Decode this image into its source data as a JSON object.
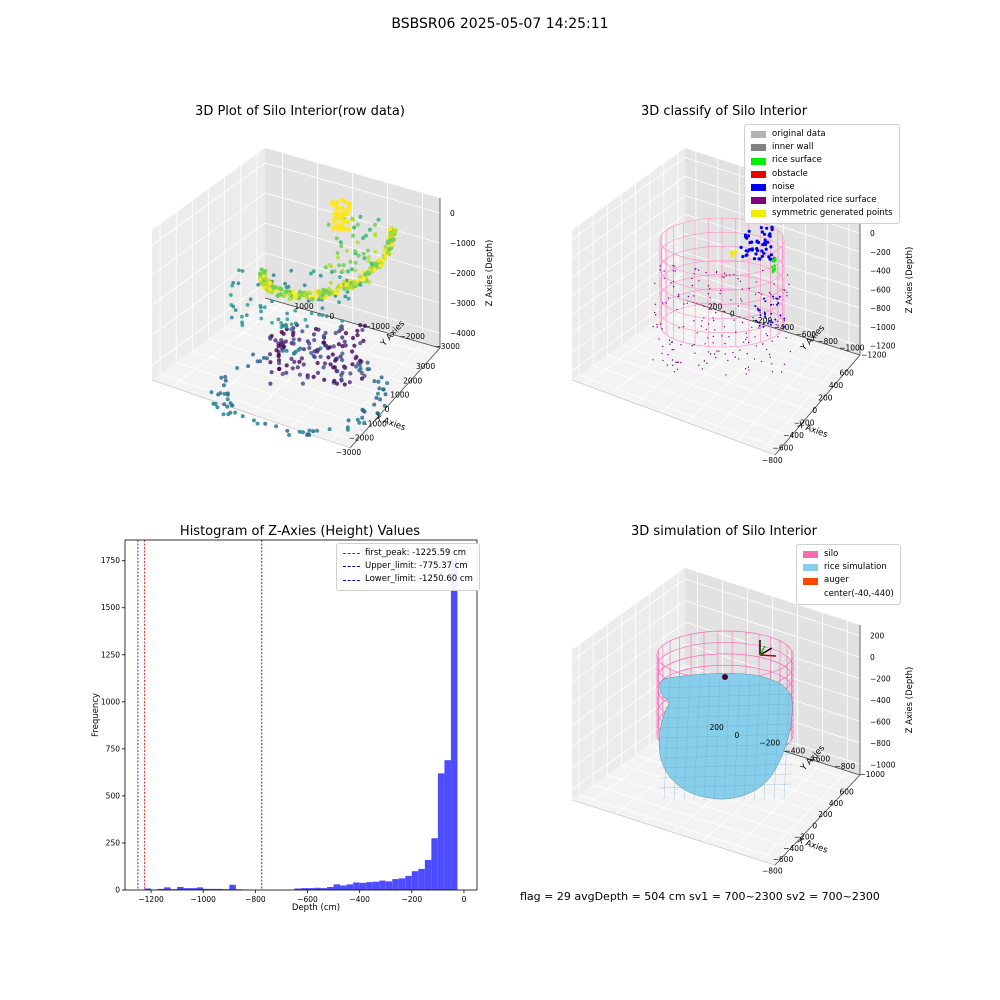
{
  "figure": {
    "suptitle": "BSBSR06 2025-05-07 14:25:11",
    "footer_text": "flag = 29  avgDepth = 504 cm  sv1 = 700~2300  sv2 = 700~2300"
  },
  "chart_data": [
    {
      "type": "scatter3d",
      "title": "3D Plot of Silo Interior(row data)",
      "xlabel": "X Axies",
      "ylabel": "Y Axies",
      "zlabel": "Z Axies (Depth)",
      "x_ticks": [
        "−3000",
        "−2000",
        "−1000",
        "0",
        "1000",
        "2000",
        "3000"
      ],
      "y_ticks": [
        "−3000",
        "−2000",
        "−1000",
        "0",
        "1000"
      ],
      "z_ticks": [
        "−4000",
        "−3000",
        "−2000",
        "−1000",
        "0"
      ],
      "colormap": "viridis",
      "grid": true
    },
    {
      "type": "scatter3d",
      "title": "3D classify of Silo Interior",
      "xlabel": "X Axies",
      "ylabel": "Y Axies",
      "zlabel": "Z Axies (Depth)",
      "x_ticks": [
        "−800",
        "−600",
        "−400",
        "−200",
        "0",
        "200",
        "400",
        "600"
      ],
      "y_ticks": [
        "−1200",
        "−1000",
        "−800",
        "−600",
        "−400",
        "−200",
        "0",
        "200"
      ],
      "z_ticks": [
        "−1200",
        "−1000",
        "−800",
        "−600",
        "−400",
        "−200",
        "0",
        "200"
      ],
      "legend_position": "top-right",
      "legend": [
        {
          "label": "original data",
          "color": "#b3b3b3"
        },
        {
          "label": "inner wall",
          "color": "#808080"
        },
        {
          "label": "rice surface",
          "color": "#00ee00"
        },
        {
          "label": "obstacle",
          "color": "#ee0000"
        },
        {
          "label": "noise",
          "color": "#0000ee"
        },
        {
          "label": "interpolated rice surface",
          "color": "#800080"
        },
        {
          "label": "symmetric generated points",
          "color": "#eeee00"
        }
      ],
      "grid": true
    },
    {
      "type": "bar",
      "title": "Histogram of Z-Axies (Height) Values",
      "xlabel": "Depth (cm)",
      "ylabel": "Frequency",
      "xlim": [
        -1300,
        50
      ],
      "ylim": [
        0,
        1860
      ],
      "x_ticks": [
        -1200,
        -1000,
        -800,
        -600,
        -400,
        -200,
        0
      ],
      "y_ticks": [
        0,
        250,
        500,
        750,
        1000,
        1250,
        1500,
        1750
      ],
      "bar_color": "#4d4dff",
      "bin_width": 25,
      "bins": [
        {
          "x": -1200,
          "y": 8
        },
        {
          "x": -1175,
          "y": 2
        },
        {
          "x": -1150,
          "y": 6
        },
        {
          "x": -1125,
          "y": 14
        },
        {
          "x": -1100,
          "y": 4
        },
        {
          "x": -1075,
          "y": 16
        },
        {
          "x": -1050,
          "y": 10
        },
        {
          "x": -1025,
          "y": 10
        },
        {
          "x": -1000,
          "y": 14
        },
        {
          "x": -975,
          "y": 6
        },
        {
          "x": -950,
          "y": 6
        },
        {
          "x": -925,
          "y": 6
        },
        {
          "x": -900,
          "y": 4
        },
        {
          "x": -875,
          "y": 28
        },
        {
          "x": -850,
          "y": 4
        },
        {
          "x": -825,
          "y": 2
        },
        {
          "x": -625,
          "y": 8
        },
        {
          "x": -600,
          "y": 10
        },
        {
          "x": -575,
          "y": 10
        },
        {
          "x": -550,
          "y": 12
        },
        {
          "x": -525,
          "y": 10
        },
        {
          "x": -500,
          "y": 16
        },
        {
          "x": -475,
          "y": 30
        },
        {
          "x": -450,
          "y": 24
        },
        {
          "x": -425,
          "y": 30
        },
        {
          "x": -400,
          "y": 40
        },
        {
          "x": -375,
          "y": 38
        },
        {
          "x": -350,
          "y": 42
        },
        {
          "x": -325,
          "y": 44
        },
        {
          "x": -300,
          "y": 50
        },
        {
          "x": -275,
          "y": 46
        },
        {
          "x": -250,
          "y": 58
        },
        {
          "x": -225,
          "y": 62
        },
        {
          "x": -200,
          "y": 75
        },
        {
          "x": -175,
          "y": 100
        },
        {
          "x": -150,
          "y": 112
        },
        {
          "x": -125,
          "y": 160
        },
        {
          "x": -100,
          "y": 275
        },
        {
          "x": -75,
          "y": 620
        },
        {
          "x": -50,
          "y": 690
        },
        {
          "x": -25,
          "y": 1760
        }
      ],
      "vlines": [
        {
          "label": "first_peak: -1225.59 cm",
          "x": -1225.59,
          "color": "#ff0000"
        },
        {
          "label": "Upper_limit: -775.37 cm",
          "x": -775.37,
          "color": "#000080"
        },
        {
          "label": "Lower_limit: -1250.60 cm",
          "x": -1250.6,
          "color": "#0000ff"
        }
      ],
      "legend_position": "top-right"
    },
    {
      "type": "surface3d",
      "title": "3D simulation of Silo Interior",
      "xlabel": "X Axies",
      "ylabel": "Y Axies",
      "zlabel": "Z Axies (Depth)",
      "x_ticks": [
        "−800",
        "−600",
        "−400",
        "−200",
        "0",
        "200",
        "400",
        "600"
      ],
      "y_ticks": [
        "−1000",
        "−800",
        "−600",
        "−400",
        "−200",
        "0",
        "200"
      ],
      "z_ticks": [
        "−1000",
        "−800",
        "−600",
        "−400",
        "−200",
        "0",
        "200"
      ],
      "legend_position": "top-right",
      "legend": [
        {
          "label": "silo",
          "color": "#ff69b4"
        },
        {
          "label": "rice simulation",
          "color": "#87ceeb"
        },
        {
          "label": "auger",
          "color": "#ff4500"
        },
        {
          "label": "center(-40,-440)",
          "color": ""
        }
      ],
      "grid": true
    }
  ]
}
